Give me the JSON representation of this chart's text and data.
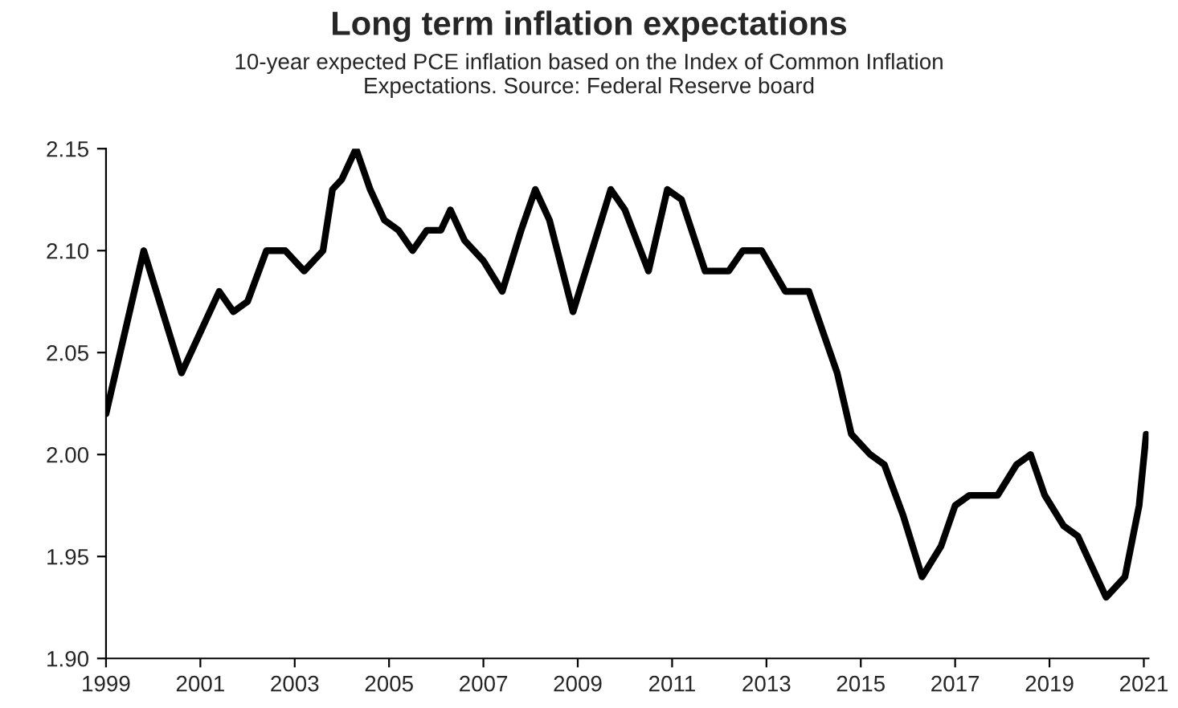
{
  "chart_data": {
    "type": "line",
    "title": "Long term inflation expectations",
    "subtitle": "10-year expected PCE inflation based on the Index of Common Inflation\nExpectations. Source: Federal Reserve board",
    "x": [
      1999.0,
      1999.8,
      2000.6,
      2001.4,
      2001.7,
      2002.0,
      2002.4,
      2002.8,
      2003.2,
      2003.6,
      2003.8,
      2004.0,
      2004.3,
      2004.6,
      2004.9,
      2005.2,
      2005.5,
      2005.8,
      2006.1,
      2006.3,
      2006.6,
      2007.0,
      2007.4,
      2007.8,
      2008.1,
      2008.4,
      2008.9,
      2009.3,
      2009.7,
      2010.0,
      2010.5,
      2010.9,
      2011.2,
      2011.7,
      2012.2,
      2012.5,
      2012.9,
      2013.4,
      2013.9,
      2014.2,
      2014.5,
      2014.8,
      2015.2,
      2015.5,
      2015.9,
      2016.3,
      2016.7,
      2017.0,
      2017.3,
      2017.9,
      2018.3,
      2018.6,
      2018.9,
      2019.3,
      2019.6,
      2019.9,
      2020.2,
      2020.6,
      2020.9,
      2021.05
    ],
    "series": [
      {
        "color": "#000000",
        "values": [
          2.02,
          2.1,
          2.04,
          2.08,
          2.07,
          2.075,
          2.1,
          2.1,
          2.09,
          2.1,
          2.13,
          2.135,
          2.15,
          2.13,
          2.115,
          2.11,
          2.1,
          2.11,
          2.11,
          2.12,
          2.105,
          2.095,
          2.08,
          2.11,
          2.13,
          2.115,
          2.07,
          2.1,
          2.13,
          2.12,
          2.09,
          2.13,
          2.125,
          2.09,
          2.09,
          2.1,
          2.1,
          2.08,
          2.08,
          2.06,
          2.04,
          2.01,
          2.0,
          1.995,
          1.97,
          1.94,
          1.955,
          1.975,
          1.98,
          1.98,
          1.995,
          2.0,
          1.98,
          1.965,
          1.96,
          1.945,
          1.93,
          1.94,
          1.975,
          2.01
        ]
      }
    ],
    "xlim": [
      1999,
      2021.1
    ],
    "xticks": [
      1999,
      2001,
      2003,
      2005,
      2007,
      2009,
      2011,
      2013,
      2015,
      2017,
      2019,
      2021
    ],
    "ylim": [
      1.9,
      2.15
    ],
    "yticks": [
      {
        "value": 1.9,
        "label": "1.90"
      },
      1.95,
      {
        "value": 2.0,
        "label": "2.00"
      },
      2.05,
      {
        "value": 2.1,
        "label": "2.10"
      },
      2.15
    ],
    "grid": false,
    "legend": false,
    "line_style": "solid",
    "marker": "none"
  }
}
